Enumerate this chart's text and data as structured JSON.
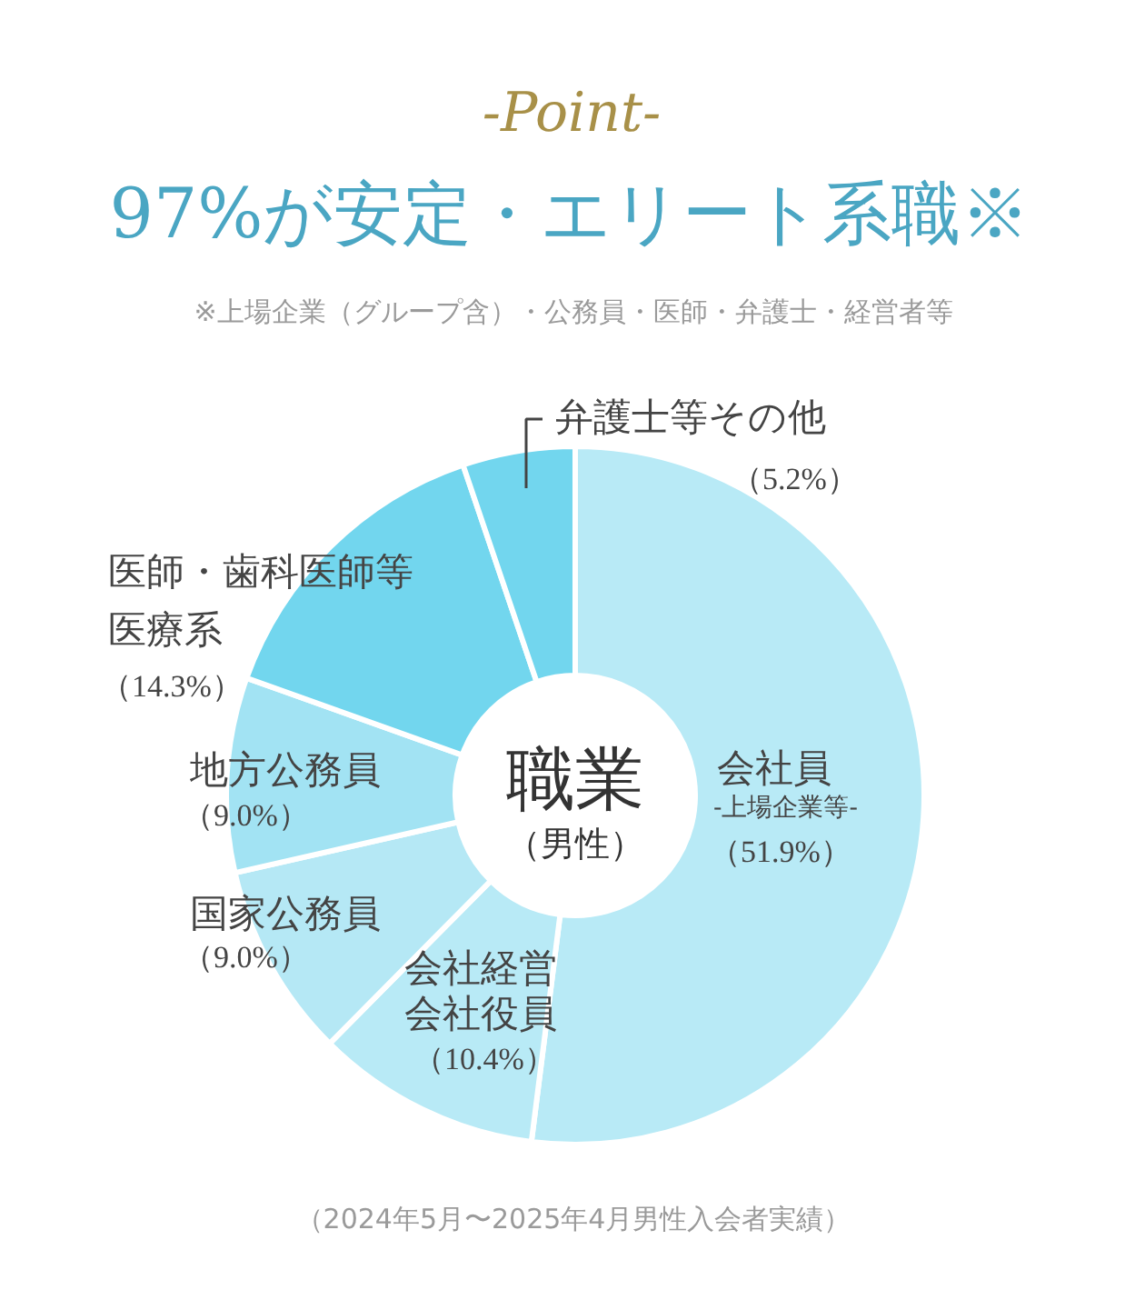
{
  "chart_data": {
    "type": "donut",
    "title": "97%が安定・エリート系職※",
    "subtitle": "※上場企業（グループ含）・公務員・医師・弁護士・経営者等",
    "categories": [
      "会社員-上場企業等-",
      "会社経営会社役員",
      "国家公務員",
      "地方公務員",
      "医師・歯科医師等医療系",
      "弁護士等その他"
    ],
    "values": [
      51.9,
      10.4,
      9.0,
      9.0,
      14.3,
      5.2
    ],
    "value_labels": [
      "（51.9%）",
      "（10.4%）",
      "（9.0%）",
      "（9.0%）",
      "（14.3%）",
      "（5.2%）"
    ],
    "colors": [
      "#b8eaf6",
      "#b8eaf6",
      "#b5e8f5",
      "#a2e3f3",
      "#72d6ee",
      "#72d6ee"
    ],
    "annotations": [
      "-Point-",
      "職業",
      "（男性）",
      "（2024年5月〜2025年4月男性入会者実績）"
    ]
  }
}
